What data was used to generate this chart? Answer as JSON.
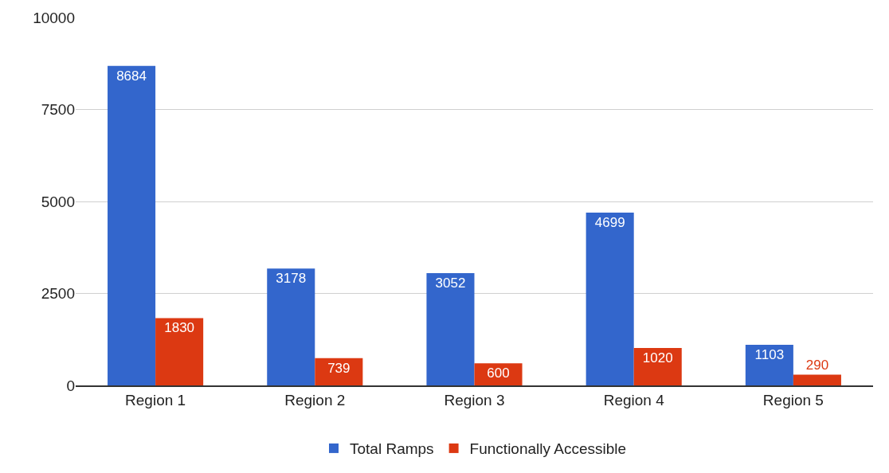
{
  "chart_data": {
    "type": "bar",
    "categories": [
      "Region 1",
      "Region 2",
      "Region 3",
      "Region 4",
      "Region 5"
    ],
    "series": [
      {
        "name": "Total Ramps",
        "color": "#3366cc",
        "values": [
          8684,
          3178,
          3052,
          4699,
          1103
        ]
      },
      {
        "name": "Functionally Accessible",
        "color": "#dc3912",
        "values": [
          1830,
          739,
          600,
          1020,
          290
        ]
      }
    ],
    "ylim": [
      0,
      10000
    ],
    "yticks": [
      0,
      2500,
      5000,
      7500,
      10000
    ],
    "grid": "y",
    "legend": "bottom",
    "data_labels": true
  }
}
